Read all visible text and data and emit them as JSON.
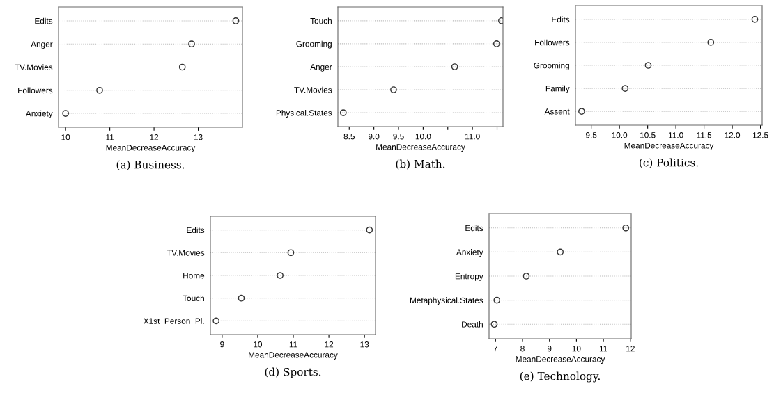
{
  "chart_data": [
    {
      "type": "scatter",
      "orientation": "horizontal",
      "categories": [
        "Edits",
        "Anger",
        "TV.Movies",
        "Followers",
        "Anxiety"
      ],
      "values": [
        13.85,
        12.85,
        12.64,
        10.77,
        10.0
      ],
      "color": "#333333",
      "marker": "circle",
      "grid": "y",
      "line_style": "dotted",
      "xlabel": "MeanDecreaseAccuracy",
      "xlim": [
        9.84,
        14.0
      ],
      "xticks": [
        10,
        11,
        12,
        13
      ],
      "annotations": [
        "(a) Business."
      ]
    },
    {
      "type": "scatter",
      "orientation": "horizontal",
      "categories": [
        "Touch",
        "Grooming",
        "Anger",
        "TV.Movies",
        "Physical.States"
      ],
      "values": [
        11.59,
        11.49,
        10.64,
        9.4,
        8.38
      ],
      "color": "#333333",
      "marker": "circle",
      "grid": "y",
      "line_style": "dotted",
      "xlabel": "MeanDecreaseAccuracy",
      "xlim": [
        8.27,
        11.62
      ],
      "xticks": [
        {
          "value": 8.5,
          "label": "8.5"
        },
        {
          "value": 9.0,
          "label": "9.0"
        },
        {
          "value": 9.5,
          "label": "9.5"
        },
        {
          "value": 10.0,
          "label": "10.0"
        },
        {
          "value": 10.5,
          "label": null
        },
        {
          "value": 11.0,
          "label": "11.0"
        },
        {
          "value": 11.5,
          "label": null
        }
      ],
      "annotations": [
        "(b) Math."
      ]
    },
    {
      "type": "scatter",
      "orientation": "horizontal",
      "categories": [
        "Edits",
        "Followers",
        "Grooming",
        "Family",
        "Assent"
      ],
      "values": [
        12.4,
        11.62,
        10.51,
        10.1,
        9.33
      ],
      "color": "#333333",
      "marker": "circle",
      "grid": "y",
      "line_style": "dotted",
      "xlabel": "MeanDecreaseAccuracy",
      "xlim": [
        9.22,
        12.53
      ],
      "xticks": [
        {
          "value": 9.5,
          "label": "9.5"
        },
        {
          "value": 10.0,
          "label": "10.0"
        },
        {
          "value": 10.5,
          "label": "10.5"
        },
        {
          "value": 11.0,
          "label": "11.0"
        },
        {
          "value": 11.5,
          "label": "11.5"
        },
        {
          "value": 12.0,
          "label": "12.0"
        },
        {
          "value": 12.5,
          "label": "12.5"
        }
      ],
      "annotations": [
        "(c) Politics."
      ]
    },
    {
      "type": "scatter",
      "orientation": "horizontal",
      "categories": [
        "Edits",
        "TV.Movies",
        "Home",
        "Touch",
        "X1st_Person_Pl."
      ],
      "values": [
        13.14,
        10.93,
        10.63,
        9.54,
        8.83
      ],
      "color": "#333333",
      "marker": "circle",
      "grid": "y",
      "line_style": "dotted",
      "xlabel": "MeanDecreaseAccuracy",
      "xlim": [
        8.67,
        13.31
      ],
      "xticks": [
        9,
        10,
        11,
        12,
        13
      ],
      "annotations": [
        "(d) Sports."
      ]
    },
    {
      "type": "scatter",
      "orientation": "horizontal",
      "categories": [
        "Edits",
        "Anxiety",
        "Entropy",
        "Metaphysical.States",
        "Death"
      ],
      "values": [
        11.83,
        9.4,
        8.14,
        7.05,
        6.95
      ],
      "color": "#333333",
      "marker": "circle",
      "grid": "y",
      "line_style": "dotted",
      "xlabel": "MeanDecreaseAccuracy",
      "xlim": [
        6.76,
        12.03
      ],
      "xticks": [
        7,
        8,
        9,
        10,
        11,
        12
      ],
      "annotations": [
        "(e) Technology."
      ]
    }
  ]
}
